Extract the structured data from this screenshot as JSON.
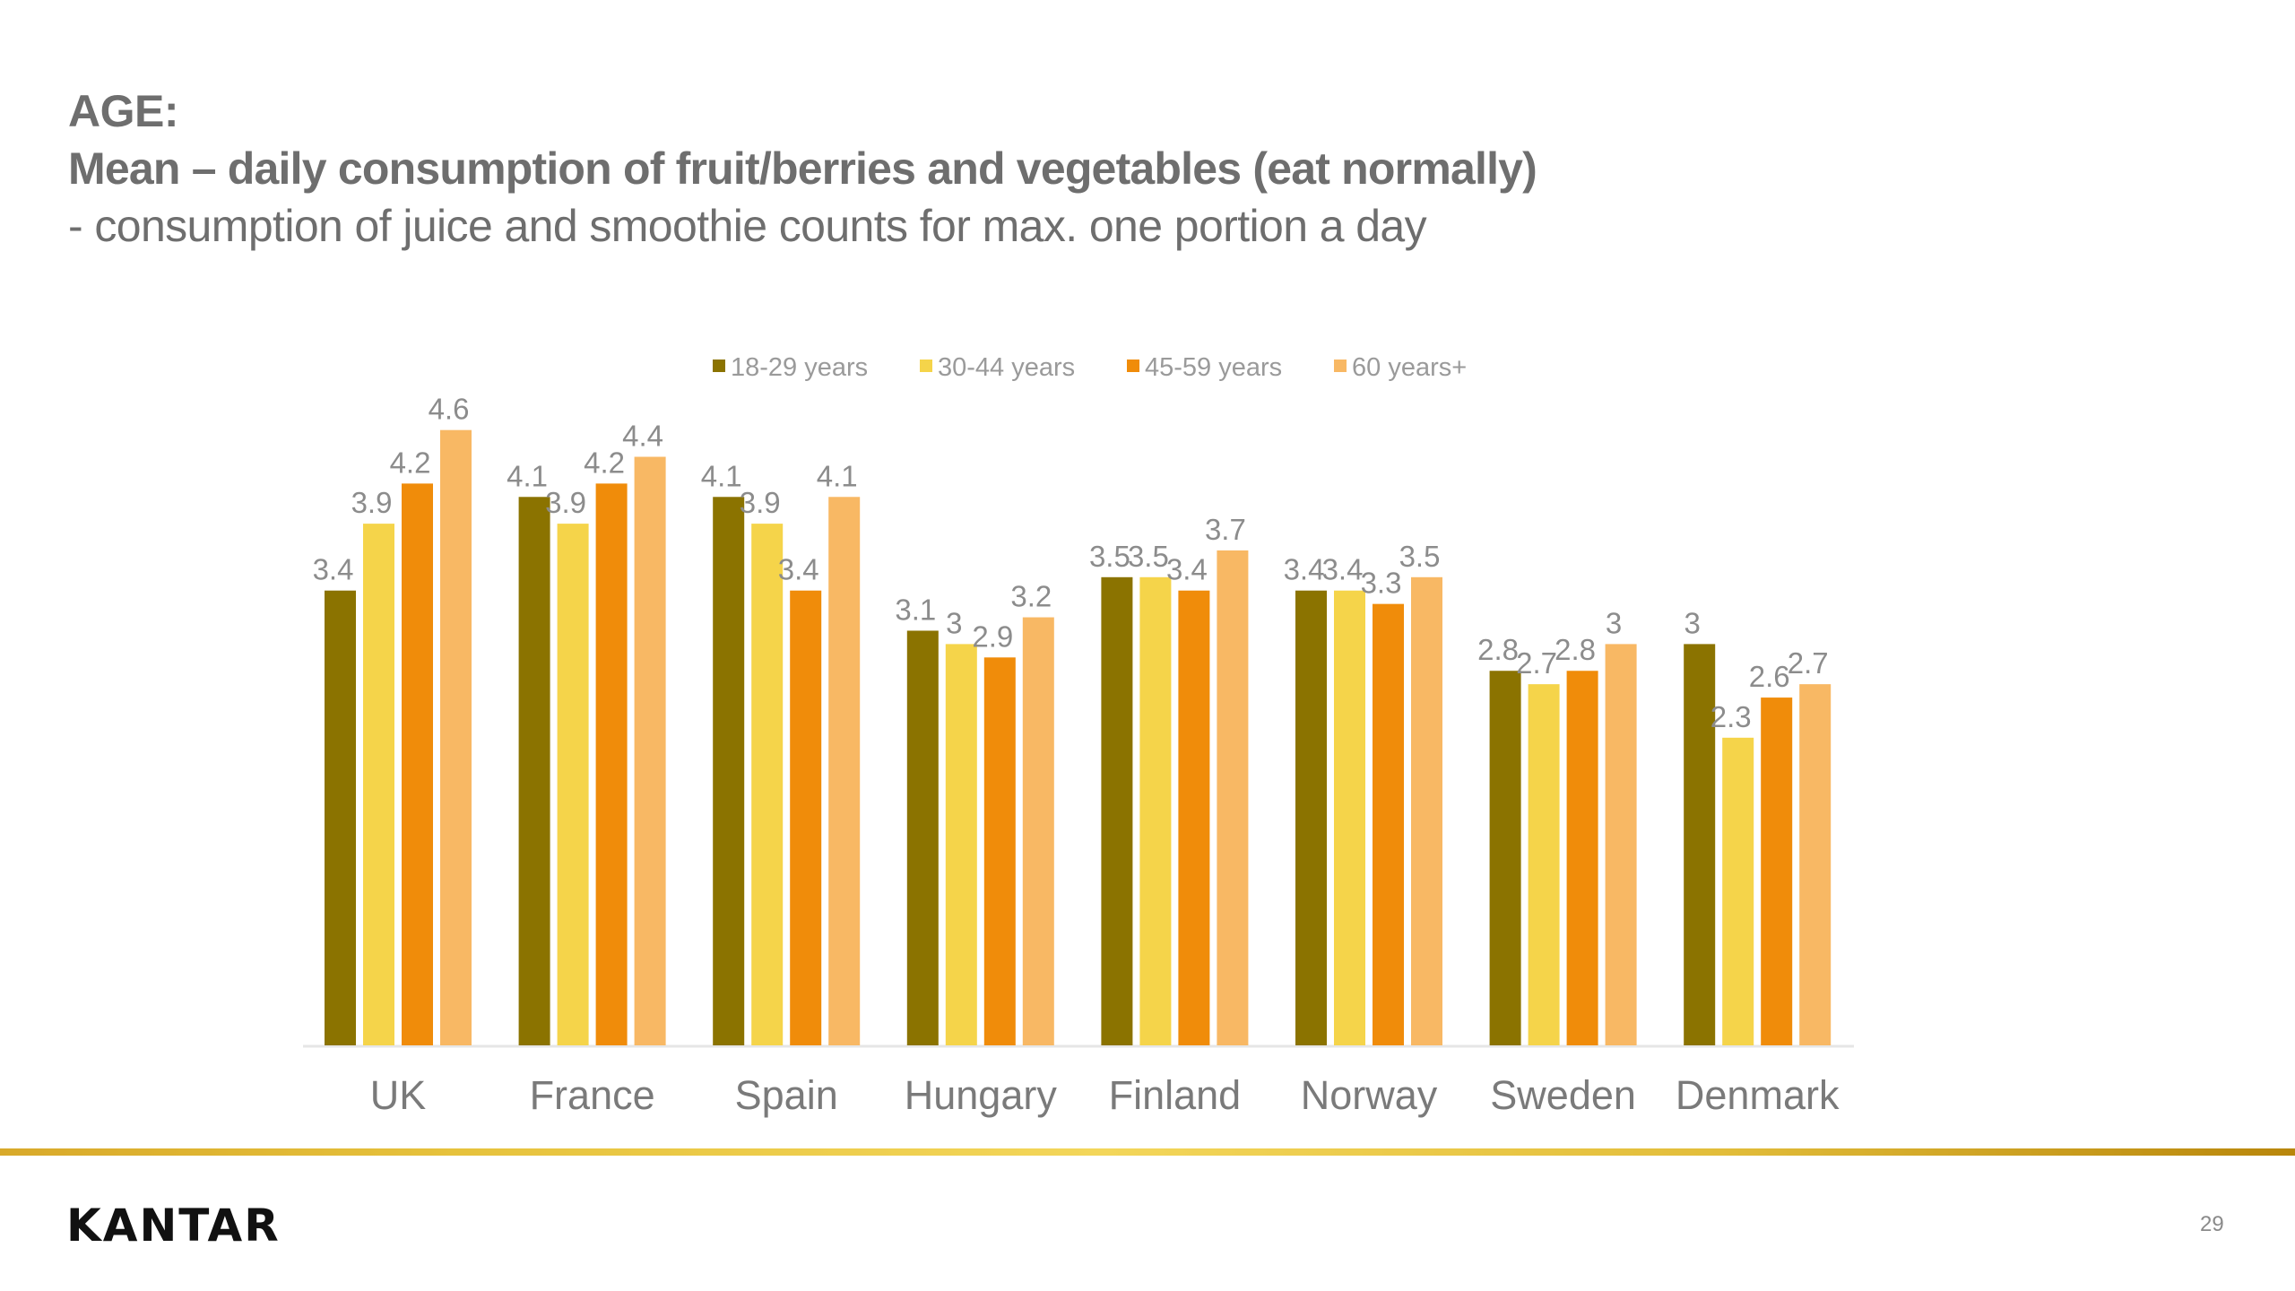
{
  "slide": {
    "title_line1": "AGE:",
    "title_line2": "Mean – daily consumption of fruit/berries and vegetables (eat normally)",
    "title_line3": "- consumption of juice and smoothie counts for max. one portion a day",
    "logo": "KANTAR",
    "page_number": "29",
    "accent_color": "#d4a017"
  },
  "chart_data": {
    "type": "bar",
    "title": "",
    "xlabel": "",
    "ylabel": "",
    "ylim": [
      0,
      4.6
    ],
    "grid": false,
    "legend_position": "top",
    "categories": [
      "UK",
      "France",
      "Spain",
      "Hungary",
      "Finland",
      "Norway",
      "Sweden",
      "Denmark"
    ],
    "series": [
      {
        "name": "18-29 years",
        "color": "#8b7300",
        "values": [
          3.4,
          4.1,
          4.1,
          3.1,
          3.5,
          3.4,
          2.8,
          3
        ]
      },
      {
        "name": "30-44 years",
        "color": "#f5d44a",
        "values": [
          3.9,
          3.9,
          3.9,
          3,
          3.5,
          3.4,
          2.7,
          2.3
        ]
      },
      {
        "name": "45-59 years",
        "color": "#f08c0a",
        "values": [
          4.2,
          4.2,
          3.4,
          2.9,
          3.4,
          3.3,
          2.8,
          2.6
        ]
      },
      {
        "name": "60 years+",
        "color": "#f8b864",
        "values": [
          4.6,
          4.4,
          4.1,
          3.2,
          3.7,
          3.5,
          3,
          2.7
        ]
      }
    ],
    "data_labels": true
  }
}
